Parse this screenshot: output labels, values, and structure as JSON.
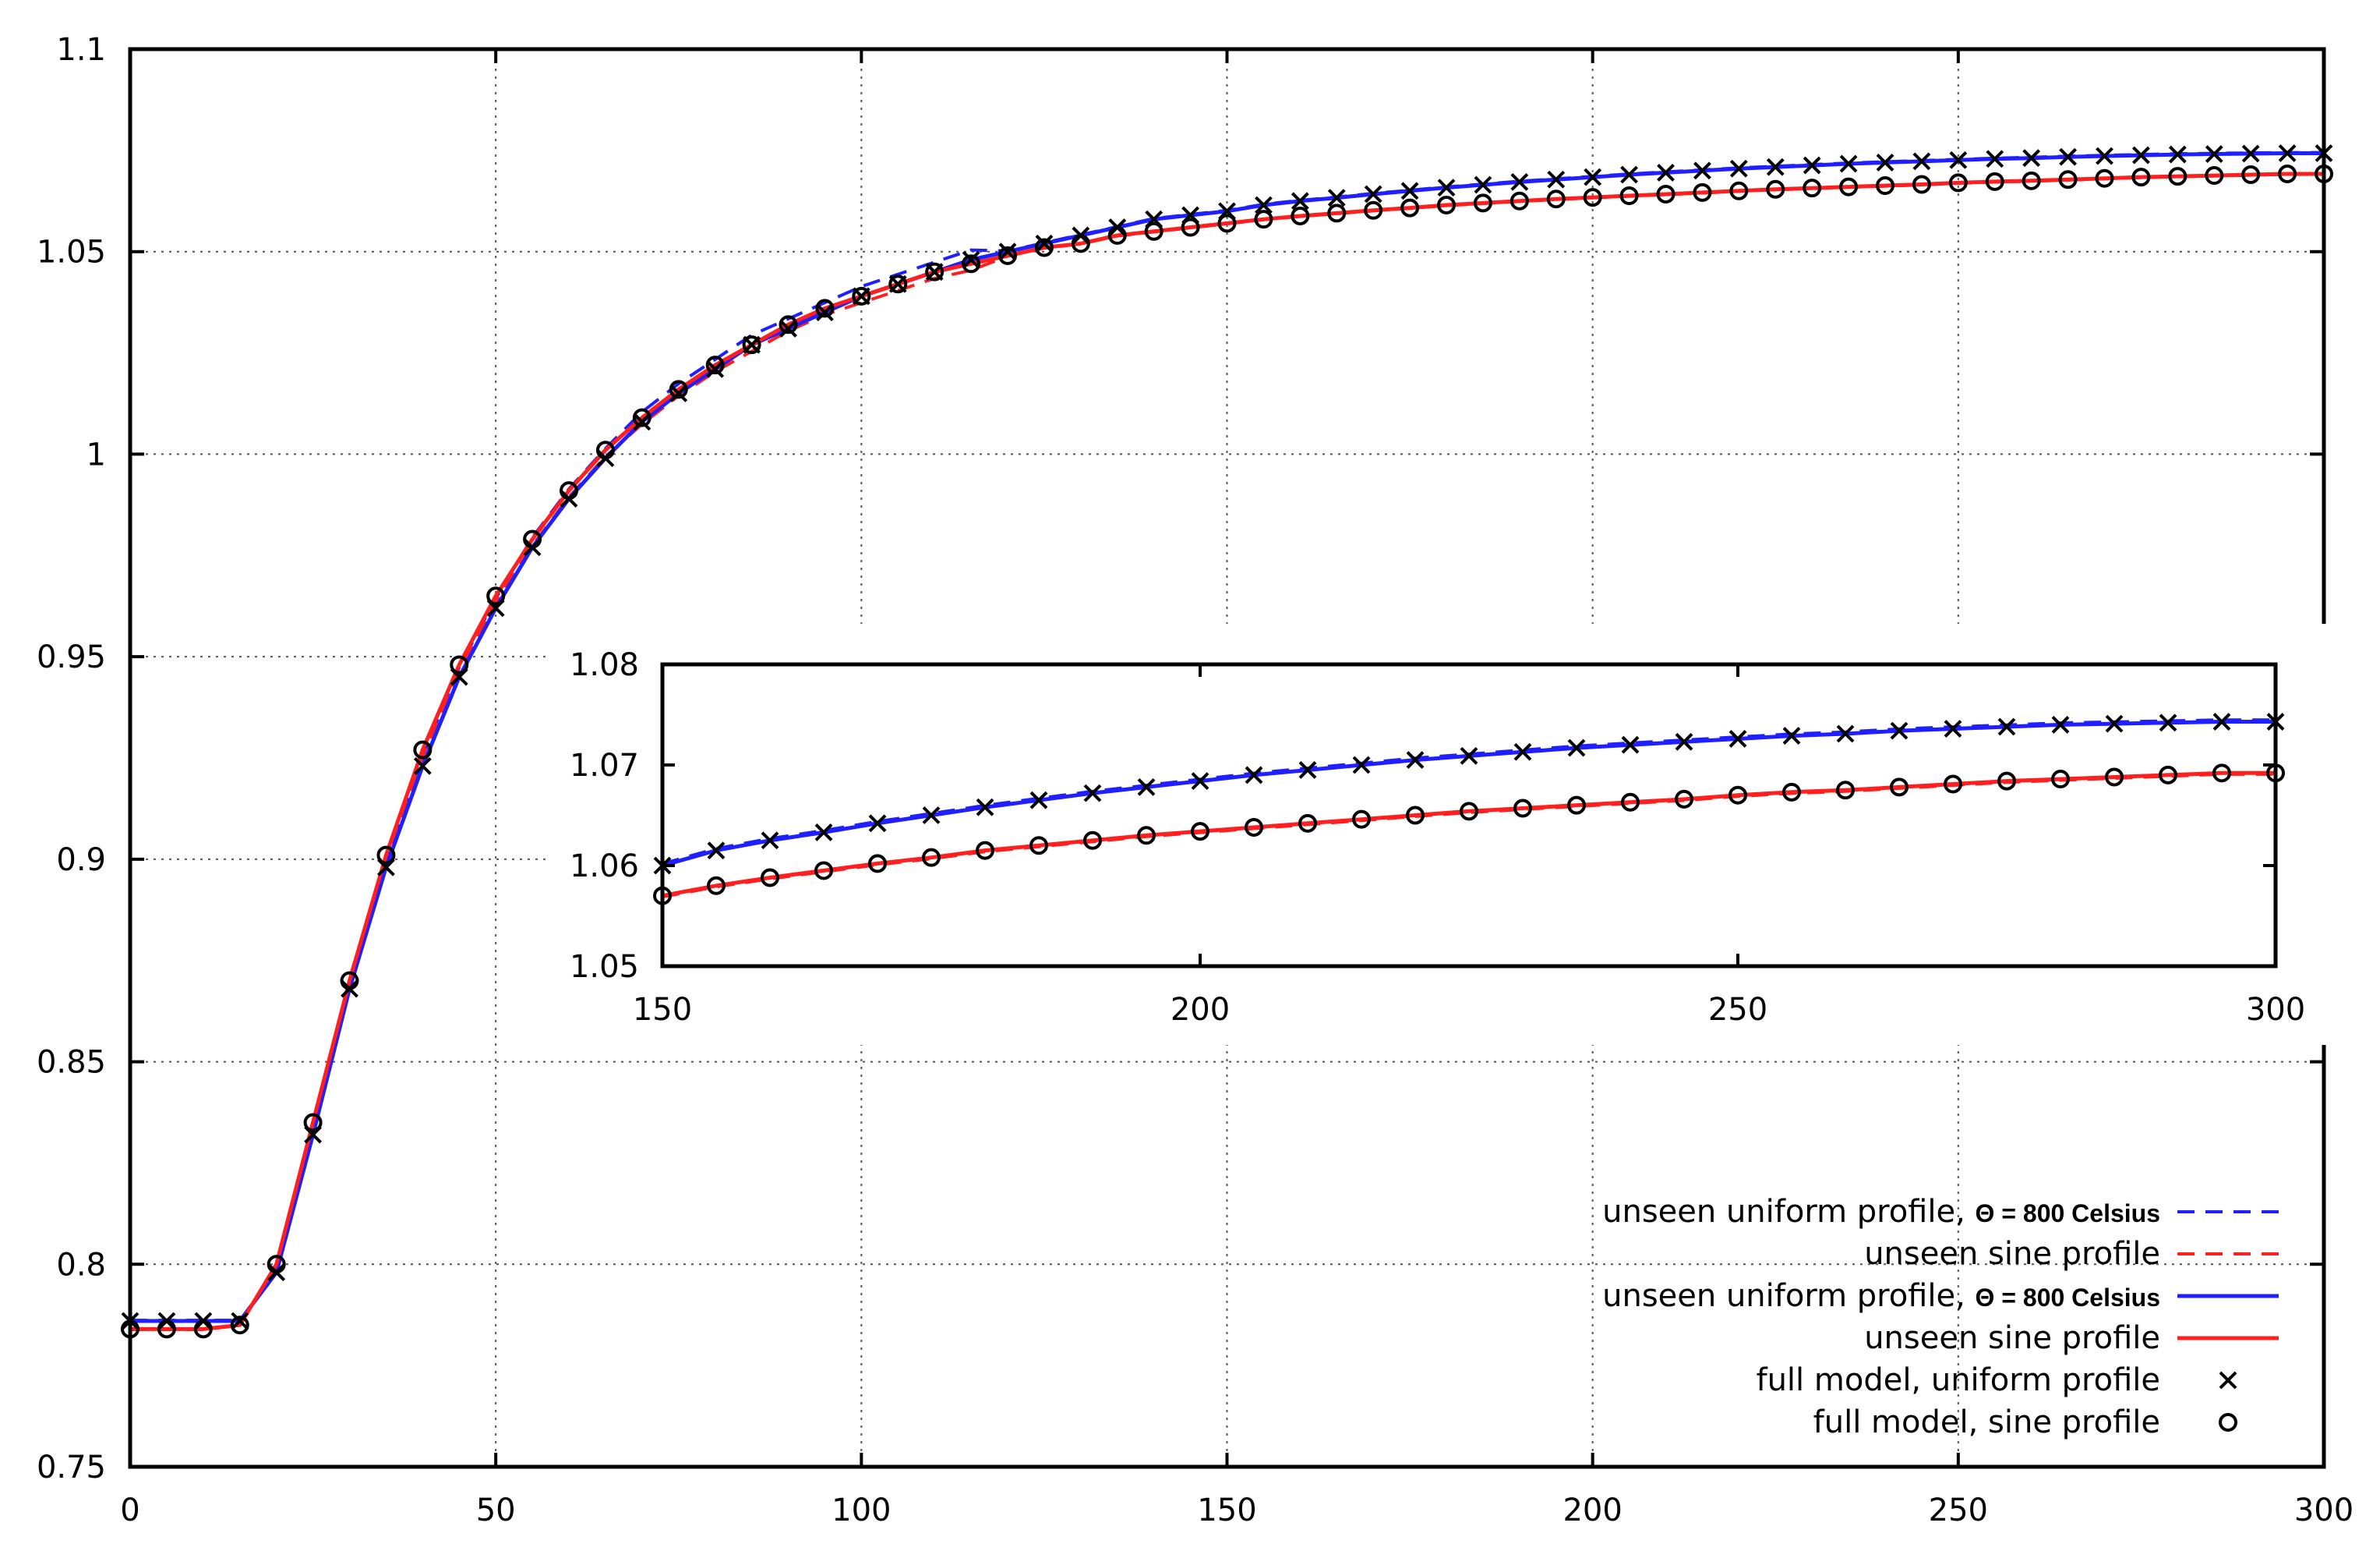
{
  "chart_data": [
    {
      "type": "line",
      "title": "",
      "xlabel": "",
      "ylabel": "",
      "xlim": [
        0,
        300
      ],
      "ylim": [
        0.75,
        1.1
      ],
      "grid": true,
      "legend_position": "bottom-right",
      "x_ticks": [
        "0",
        "50",
        "100",
        "150",
        "200",
        "250",
        "300"
      ],
      "y_ticks": [
        "0.75",
        "0.8",
        "0.85",
        "0.9",
        "0.95",
        "1",
        "1.05",
        "1.1"
      ],
      "legend": [
        {
          "label_main": "unseen uniform profile, ",
          "label_suffix": "Θ = 800 Celsius",
          "color": "#1f1fff",
          "style": "dashed"
        },
        {
          "label_main": "unseen sine profile",
          "label_suffix": "",
          "color": "#ff1f1f",
          "style": "dashed"
        },
        {
          "label_main": "unseen uniform profile, ",
          "label_suffix": "Θ = 800 Celsius",
          "color": "#1f1fff",
          "style": "solid"
        },
        {
          "label_main": "unseen sine profile",
          "label_suffix": "",
          "color": "#ff1f1f",
          "style": "solid"
        },
        {
          "label_main": "full model, uniform profile",
          "label_suffix": "",
          "color": "#000000",
          "style": "cross"
        },
        {
          "label_main": "full model, sine profile",
          "label_suffix": "",
          "color": "#000000",
          "style": "circle"
        }
      ],
      "series": [
        {
          "name": "full model, uniform profile",
          "x": [
            0,
            5,
            10,
            15,
            20,
            25,
            30,
            35,
            40,
            45,
            50,
            55,
            60,
            65,
            70,
            75,
            80,
            85,
            90,
            95,
            100,
            105,
            110,
            115,
            120,
            125,
            130,
            135,
            140,
            145,
            150,
            155,
            160,
            165,
            170,
            175,
            180,
            185,
            190,
            195,
            200,
            205,
            210,
            215,
            220,
            225,
            230,
            235,
            240,
            245,
            250,
            255,
            260,
            265,
            270,
            275,
            280,
            285,
            290,
            295,
            300
          ],
          "y": [
            0.786,
            0.786,
            0.786,
            0.786,
            0.798,
            0.832,
            0.868,
            0.898,
            0.923,
            0.945,
            0.962,
            0.977,
            0.989,
            0.999,
            1.008,
            1.015,
            1.021,
            1.027,
            1.031,
            1.035,
            1.039,
            1.042,
            1.045,
            1.048,
            1.05,
            1.052,
            1.054,
            1.056,
            1.058,
            1.059,
            1.06,
            1.0615,
            1.0625,
            1.0633,
            1.0642,
            1.065,
            1.0658,
            1.0665,
            1.0672,
            1.0678,
            1.0684,
            1.069,
            1.0695,
            1.07,
            1.0705,
            1.0709,
            1.0713,
            1.0717,
            1.072,
            1.0723,
            1.0726,
            1.0729,
            1.0731,
            1.0734,
            1.0736,
            1.0738,
            1.074,
            1.0741,
            1.0742,
            1.0743,
            1.0743
          ]
        },
        {
          "name": "full model, sine profile",
          "x": [
            0,
            5,
            10,
            15,
            20,
            25,
            30,
            35,
            40,
            45,
            50,
            55,
            60,
            65,
            70,
            75,
            80,
            85,
            90,
            95,
            100,
            105,
            110,
            115,
            120,
            125,
            130,
            135,
            140,
            145,
            150,
            155,
            160,
            165,
            170,
            175,
            180,
            185,
            190,
            195,
            200,
            205,
            210,
            215,
            220,
            225,
            230,
            235,
            240,
            245,
            250,
            255,
            260,
            265,
            270,
            275,
            280,
            285,
            290,
            295,
            300
          ],
          "y": [
            0.784,
            0.784,
            0.784,
            0.785,
            0.8,
            0.835,
            0.87,
            0.901,
            0.927,
            0.948,
            0.965,
            0.979,
            0.991,
            1.001,
            1.009,
            1.016,
            1.022,
            1.027,
            1.032,
            1.036,
            1.039,
            1.042,
            1.045,
            1.047,
            1.049,
            1.051,
            1.052,
            1.054,
            1.055,
            1.056,
            1.057,
            1.058,
            1.0588,
            1.0595,
            1.0602,
            1.0608,
            1.0615,
            1.062,
            1.0625,
            1.063,
            1.0634,
            1.0638,
            1.0642,
            1.0646,
            1.065,
            1.0654,
            1.0657,
            1.066,
            1.0663,
            1.0666,
            1.067,
            1.0673,
            1.0675,
            1.0678,
            1.0681,
            1.0684,
            1.0686,
            1.0688,
            1.069,
            1.0692,
            1.0692
          ]
        }
      ]
    },
    {
      "type": "line",
      "title": "",
      "xlabel": "",
      "ylabel": "",
      "xlim": [
        150,
        300
      ],
      "ylim": [
        1.05,
        1.08
      ],
      "grid": false,
      "x_ticks": [
        "150",
        "200",
        "250",
        "300"
      ],
      "y_ticks": [
        "1.05",
        "1.06",
        "1.07",
        "1.08"
      ]
    }
  ]
}
